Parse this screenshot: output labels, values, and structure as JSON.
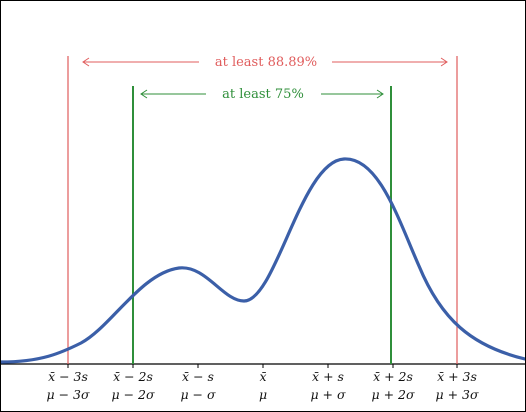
{
  "colors": {
    "curve": "#3b5fa8",
    "outer_lines": "#e05c5c",
    "inner_lines": "#2f8f3a",
    "axis": "#000000"
  },
  "annotations": {
    "outer": "at least 88.89%",
    "inner": "at least 75%"
  },
  "ticks": [
    {
      "top": "x̄ − 3s",
      "bottom": "μ − 3σ"
    },
    {
      "top": "x̄ − 2s",
      "bottom": "μ − 2σ"
    },
    {
      "top": "x̄ − s",
      "bottom": "μ − σ"
    },
    {
      "top": "x̄",
      "bottom": "μ"
    },
    {
      "top": "x̄ + s",
      "bottom": "μ + σ"
    },
    {
      "top": "x̄ + 2s",
      "bottom": "μ + 2σ"
    },
    {
      "top": "x̄ + 3s",
      "bottom": "μ + 3σ"
    }
  ]
}
